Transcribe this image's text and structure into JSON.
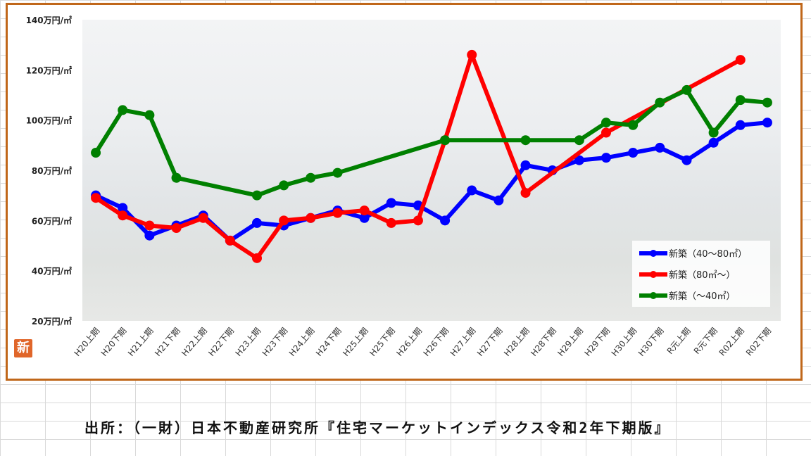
{
  "chart_data": {
    "type": "line",
    "title": "",
    "xlabel": "",
    "ylabel": "",
    "ylim": [
      20,
      140
    ],
    "yticks": [
      20,
      40,
      60,
      80,
      100,
      120,
      140
    ],
    "ytick_labels": [
      "20万円/㎡",
      "40万円/㎡",
      "60万円/㎡",
      "80万円/㎡",
      "100万円/㎡",
      "120万円/㎡",
      "140万円/㎡"
    ],
    "categories": [
      "H20上期",
      "H20下期",
      "H21上期",
      "H21下期",
      "H22上期",
      "H22下期",
      "H23上期",
      "H23下期",
      "H24上期",
      "H24下期",
      "H25上期",
      "H25下期",
      "H26上期",
      "H26下期",
      "H27上期",
      "H27下期",
      "H28上期",
      "H28下期",
      "H29上期",
      "H29下期",
      "H30上期",
      "H30下期",
      "R元上期",
      "R元下期",
      "R02上期",
      "R02下期"
    ],
    "legend_position": "bottom-right",
    "grid": false,
    "series": [
      {
        "name": "新築（40～80㎡）",
        "color": "#0000ff",
        "values": [
          70,
          65,
          54,
          58,
          62,
          52,
          59,
          58,
          61,
          64,
          61,
          67,
          66,
          60,
          72,
          68,
          82,
          80,
          84,
          85,
          87,
          89,
          84,
          91,
          98,
          99
        ]
      },
      {
        "name": "新築（80㎡～）",
        "color": "#ff0000",
        "values": [
          69,
          62,
          58,
          57,
          61,
          52,
          45,
          60,
          61,
          63,
          64,
          59,
          60,
          92,
          126,
          null,
          71,
          null,
          null,
          95,
          null,
          null,
          null,
          null,
          124,
          null
        ]
      },
      {
        "name": "新築（～40㎡）",
        "color": "#008000",
        "values": [
          87,
          104,
          102,
          77,
          null,
          null,
          70,
          74,
          77,
          79,
          null,
          null,
          null,
          92,
          null,
          null,
          92,
          null,
          92,
          99,
          98,
          107,
          112,
          95,
          108,
          107
        ]
      }
    ]
  },
  "badge": "新",
  "source_text": "出所：（一財）日本不動産研究所『住宅マーケットインデックス令和2年下期版』"
}
